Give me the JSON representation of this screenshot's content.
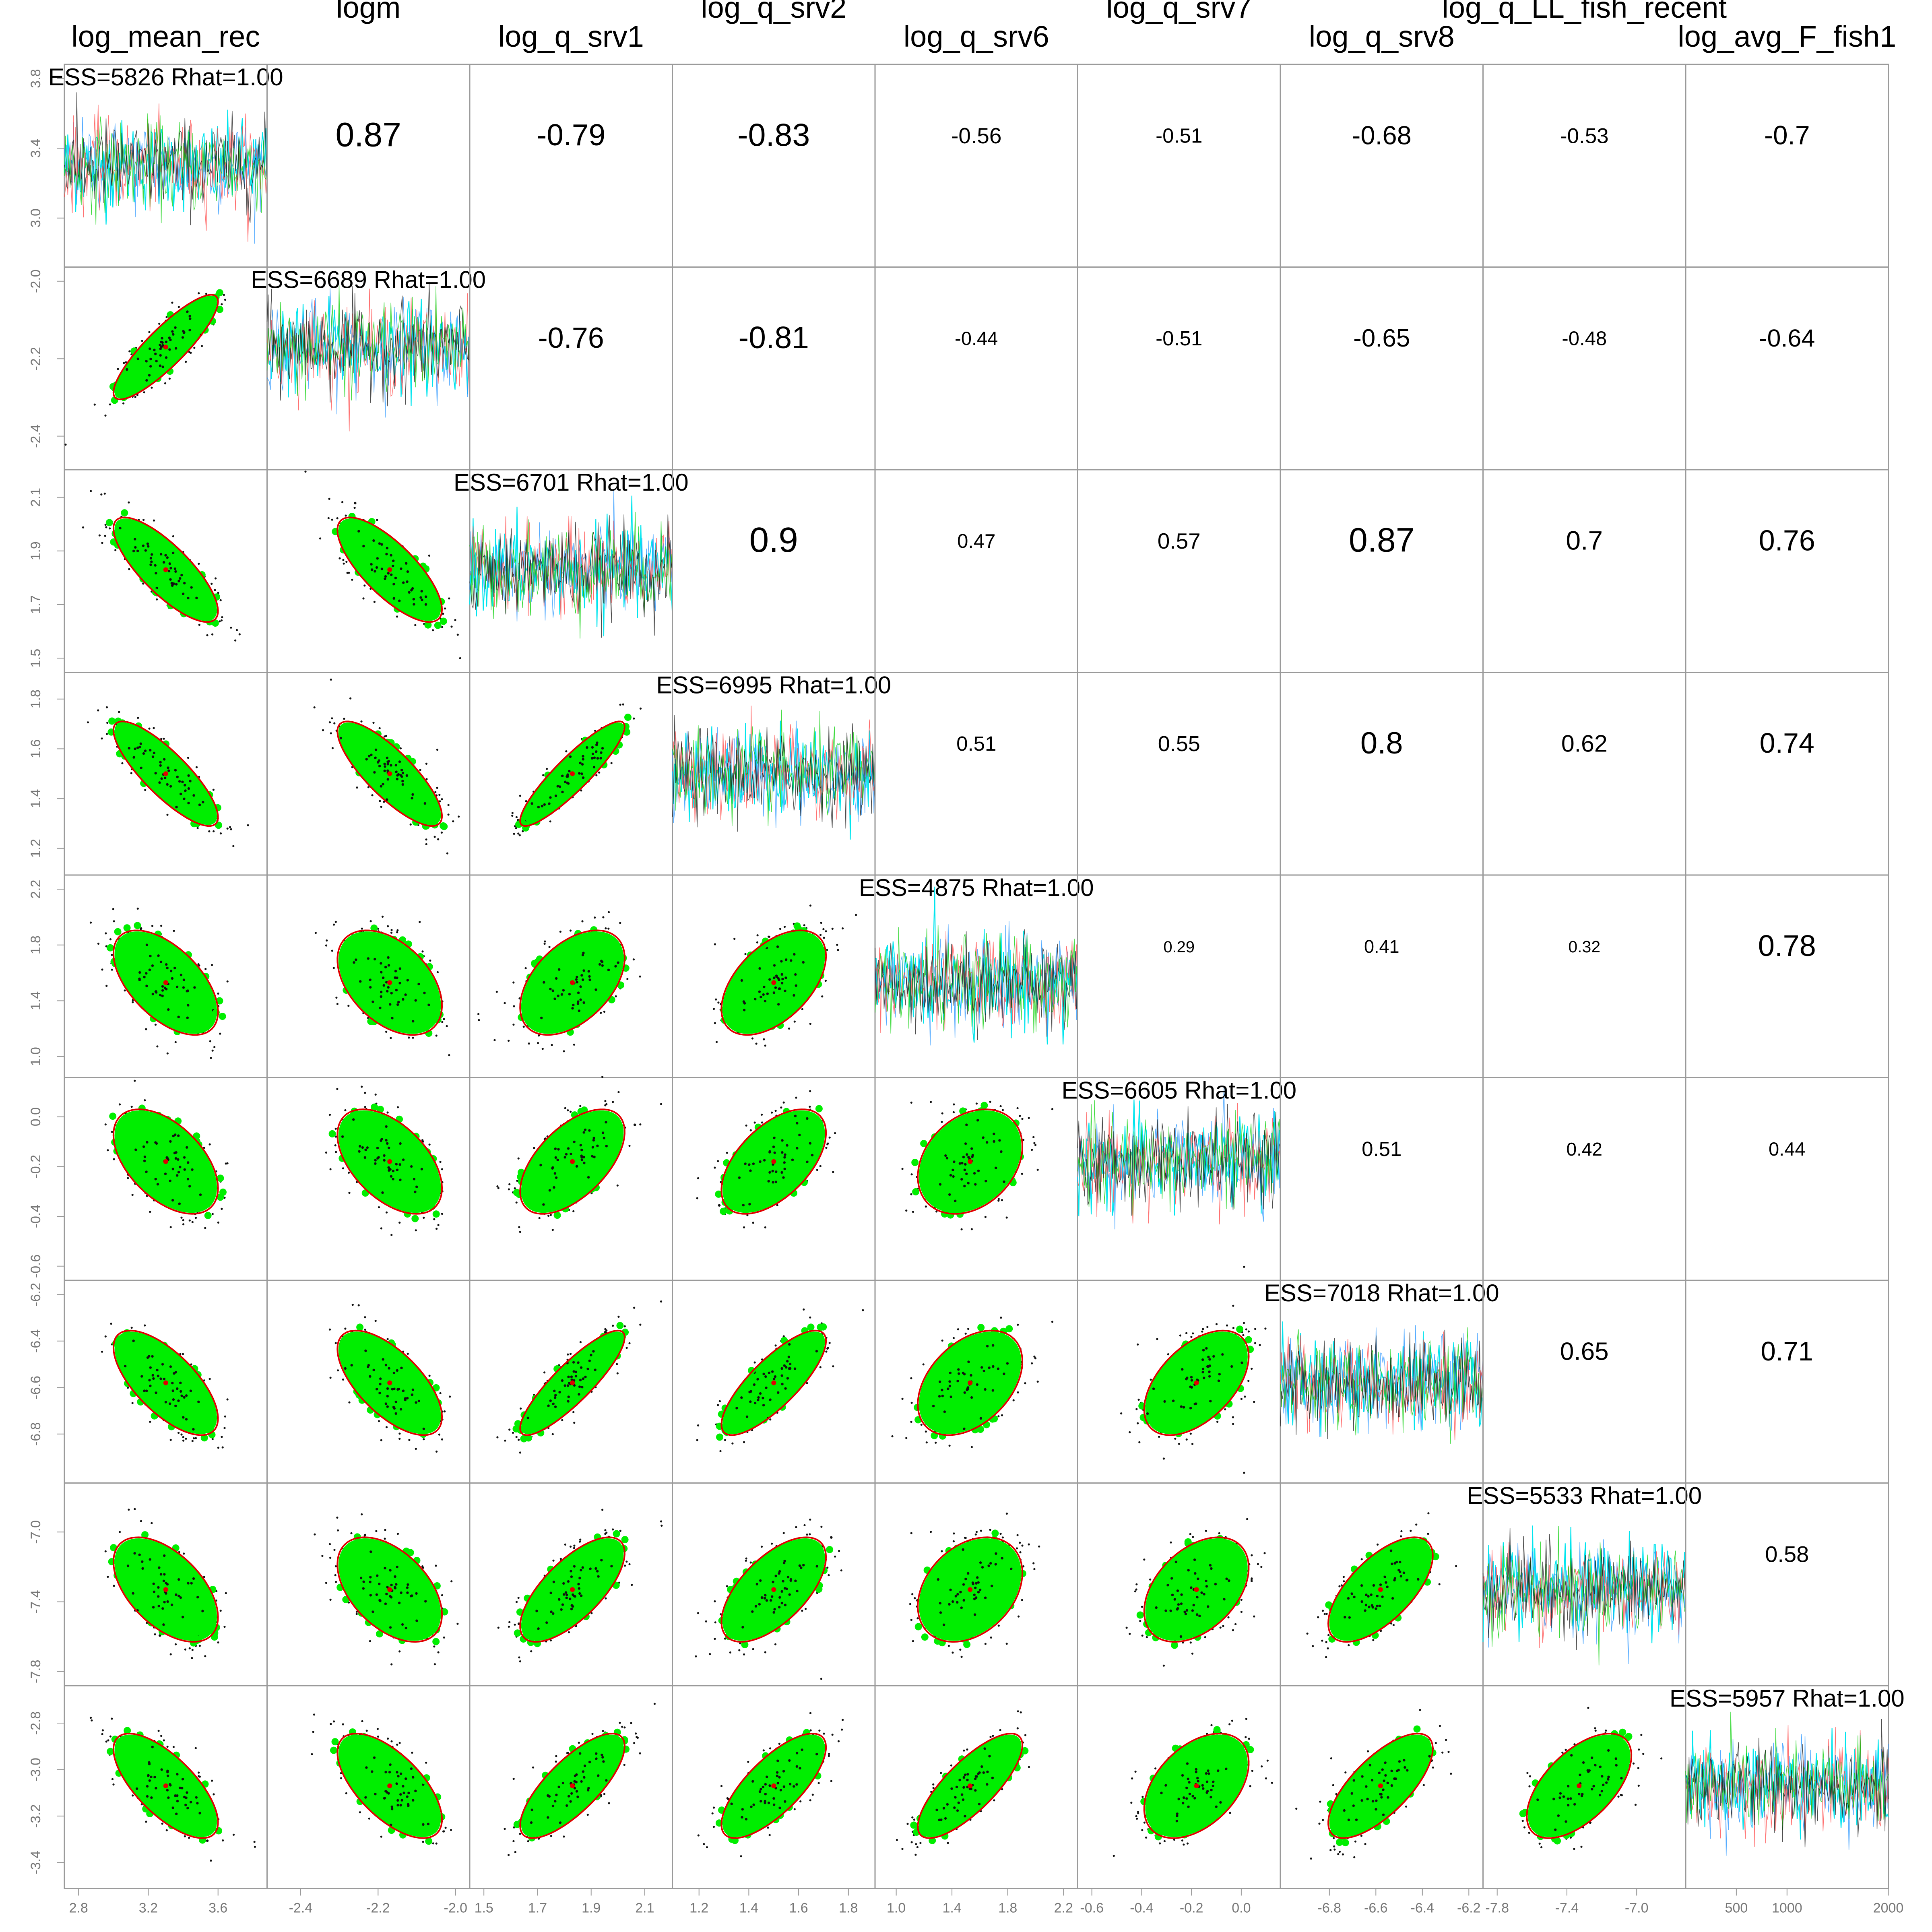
{
  "chart_data": {
    "type": "scatter",
    "title": "",
    "params": [
      {
        "name": "log_mean_rec",
        "range": [
          2.8,
          3.8
        ],
        "yticks": [
          "3.0",
          "3.4",
          "3.8"
        ],
        "xticks": [
          "2.8",
          "3.2",
          "3.6"
        ],
        "mean": 3.3,
        "ess": "ESS=5826 Rhat=1.00"
      },
      {
        "name": "logm",
        "range": [
          -2.45,
          -2.0
        ],
        "yticks": [
          "-2.4",
          "-2.2",
          "-2.0"
        ],
        "xticks": [
          "-2.4",
          "-2.2",
          "-2.0"
        ],
        "mean": -2.17,
        "ess": "ESS=6689 Rhat=1.00"
      },
      {
        "name": "log_q_srv1",
        "range": [
          1.5,
          2.15
        ],
        "yticks": [
          "1.5",
          "1.7",
          "1.9",
          "2.1"
        ],
        "xticks": [
          "1.5",
          "1.7",
          "1.9",
          "2.1"
        ],
        "mean": 1.83,
        "ess": "ESS=6701 Rhat=1.00"
      },
      {
        "name": "log_q_srv2",
        "range": [
          1.15,
          1.85
        ],
        "yticks": [
          "1.2",
          "1.4",
          "1.6",
          "1.8"
        ],
        "xticks": [
          "1.2",
          "1.4",
          "1.6",
          "1.8"
        ],
        "mean": 1.5,
        "ess": "ESS=6995 Rhat=1.00"
      },
      {
        "name": "log_q_srv6",
        "range": [
          0.95,
          2.2
        ],
        "yticks": [
          "1.0",
          "1.4",
          "1.8",
          "2.2"
        ],
        "xticks": [
          "1.0",
          "1.4",
          "1.8",
          "2.2"
        ],
        "mean": 1.53,
        "ess": "ESS=4875 Rhat=1.00"
      },
      {
        "name": "log_q_srv7",
        "range": [
          -0.6,
          0.1
        ],
        "yticks": [
          "-0.6",
          "-0.4",
          "-0.2",
          "0.0"
        ],
        "xticks": [
          "-0.6",
          "-0.4",
          "-0.2",
          "0.0"
        ],
        "mean": -0.18,
        "ess": "ESS=6605 Rhat=1.00"
      },
      {
        "name": "log_q_srv8",
        "range": [
          -6.95,
          -6.2
        ],
        "yticks": [
          "-6.8",
          "-6.6",
          "-6.4",
          "-6.2"
        ],
        "xticks": [
          "-6.8",
          "-6.6",
          "-6.4",
          "-6.2"
        ],
        "mean": -6.58,
        "ess": "ESS=7018 Rhat=1.00"
      },
      {
        "name": "log_q_LL_fish_recent",
        "range": [
          -7.8,
          -6.8
        ],
        "yticks": [
          "-7.8",
          "-7.4",
          "-7.0"
        ],
        "xticks": [
          "-7.8",
          "-7.4",
          "-7.0"
        ],
        "mean": -7.33,
        "ess": "ESS=5533 Rhat=1.00"
      },
      {
        "name": "log_avg_F_fish1",
        "range": [
          -3.45,
          -2.7
        ],
        "yticks": [
          "-3.4",
          "-3.2",
          "-3.0",
          "-2.8"
        ],
        "xticks": [
          "500",
          "1000",
          "2000"
        ],
        "mean": -3.07,
        "ess": "ESS=5957 Rhat=1.00"
      }
    ],
    "correlations": [
      {
        "row": 0,
        "col": 1,
        "label": "0.87",
        "r": 0.87
      },
      {
        "row": 0,
        "col": 2,
        "label": "-0.79",
        "r": -0.79
      },
      {
        "row": 0,
        "col": 3,
        "label": "-0.83",
        "r": -0.83
      },
      {
        "row": 0,
        "col": 4,
        "label": "-0.56",
        "r": -0.56
      },
      {
        "row": 0,
        "col": 5,
        "label": "-0.51",
        "r": -0.51
      },
      {
        "row": 0,
        "col": 6,
        "label": "-0.68",
        "r": -0.68
      },
      {
        "row": 0,
        "col": 7,
        "label": "-0.53",
        "r": -0.53
      },
      {
        "row": 0,
        "col": 8,
        "label": "-0.7",
        "r": -0.7
      },
      {
        "row": 1,
        "col": 2,
        "label": "-0.76",
        "r": -0.76
      },
      {
        "row": 1,
        "col": 3,
        "label": "-0.81",
        "r": -0.81
      },
      {
        "row": 1,
        "col": 4,
        "label": "-0.44",
        "r": -0.44
      },
      {
        "row": 1,
        "col": 5,
        "label": "-0.51",
        "r": -0.51
      },
      {
        "row": 1,
        "col": 6,
        "label": "-0.65",
        "r": -0.65
      },
      {
        "row": 1,
        "col": 7,
        "label": "-0.48",
        "r": -0.48
      },
      {
        "row": 1,
        "col": 8,
        "label": "-0.64",
        "r": -0.64
      },
      {
        "row": 2,
        "col": 3,
        "label": "0.9",
        "r": 0.9
      },
      {
        "row": 2,
        "col": 4,
        "label": "0.47",
        "r": 0.47
      },
      {
        "row": 2,
        "col": 5,
        "label": "0.57",
        "r": 0.57
      },
      {
        "row": 2,
        "col": 6,
        "label": "0.87",
        "r": 0.87
      },
      {
        "row": 2,
        "col": 7,
        "label": "0.7",
        "r": 0.7
      },
      {
        "row": 2,
        "col": 8,
        "label": "0.76",
        "r": 0.76
      },
      {
        "row": 3,
        "col": 4,
        "label": "0.51",
        "r": 0.51
      },
      {
        "row": 3,
        "col": 5,
        "label": "0.55",
        "r": 0.55
      },
      {
        "row": 3,
        "col": 6,
        "label": "0.8",
        "r": 0.8
      },
      {
        "row": 3,
        "col": 7,
        "label": "0.62",
        "r": 0.62
      },
      {
        "row": 3,
        "col": 8,
        "label": "0.74",
        "r": 0.74
      },
      {
        "row": 4,
        "col": 5,
        "label": "0.29",
        "r": 0.29
      },
      {
        "row": 4,
        "col": 6,
        "label": "0.41",
        "r": 0.41
      },
      {
        "row": 4,
        "col": 7,
        "label": "0.32",
        "r": 0.32
      },
      {
        "row": 4,
        "col": 8,
        "label": "0.78",
        "r": 0.78
      },
      {
        "row": 5,
        "col": 6,
        "label": "0.51",
        "r": 0.51
      },
      {
        "row": 5,
        "col": 7,
        "label": "0.42",
        "r": 0.42
      },
      {
        "row": 5,
        "col": 8,
        "label": "0.44",
        "r": 0.44
      },
      {
        "row": 6,
        "col": 7,
        "label": "0.65",
        "r": 0.65
      },
      {
        "row": 6,
        "col": 8,
        "label": "0.71",
        "r": 0.71
      },
      {
        "row": 7,
        "col": 8,
        "label": "0.58",
        "r": 0.58
      }
    ],
    "trace_xlim": [
      0,
      2000
    ],
    "grid": false,
    "colors": {
      "points": "#111111",
      "highlight": "#00ee00",
      "ellipse": "#e00000",
      "mean": "#e00000",
      "trace_chains": [
        "#00e5ee",
        "#1e90ff",
        "#ff4040",
        "#00cd00",
        "#111111"
      ],
      "frame": "#9a9a9a",
      "text": "#000000",
      "tick_text": "#777777"
    }
  }
}
